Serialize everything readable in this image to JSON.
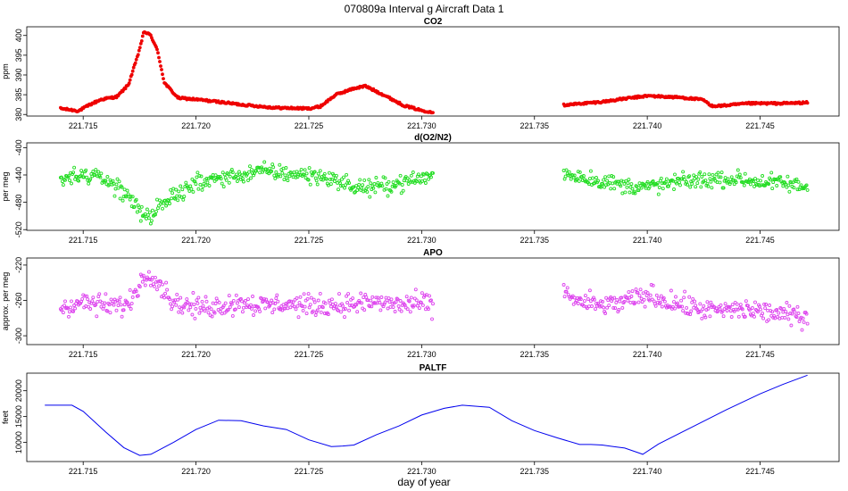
{
  "figure": {
    "title": "070809a   Interval g Aircraft Data 1",
    "xlabel": "day of year"
  },
  "chart_data": [
    {
      "type": "scatter",
      "title": "CO2",
      "ylabel": "ppm",
      "color": "#ee0000",
      "xlim": [
        221.7125,
        221.7485
      ],
      "ylim": [
        379.6,
        402.2
      ],
      "xticks": [
        221.715,
        221.72,
        221.725,
        221.73,
        221.735,
        221.74,
        221.745
      ],
      "xtick_labels": [
        "221.715",
        "221.720",
        "221.725",
        "221.730",
        "221.735",
        "221.740",
        "221.745"
      ],
      "yticks": [
        380,
        385,
        390,
        395,
        400
      ],
      "ytick_labels": [
        "380",
        "385",
        "390",
        "395",
        "400"
      ],
      "x": [
        221.714,
        221.7148,
        221.7153,
        221.7158,
        221.7165,
        221.717,
        221.7174,
        221.7177,
        221.718,
        221.7183,
        221.7186,
        221.7192,
        221.72,
        221.721,
        221.722,
        221.7235,
        221.725,
        221.7255,
        221.7262,
        221.727,
        221.7275,
        221.7283,
        221.7292,
        221.73,
        221.7305,
        221.7363,
        221.738,
        221.739,
        221.74,
        221.7415,
        221.7425,
        221.7428,
        221.7433,
        221.7445,
        221.746,
        221.7471
      ],
      "y": [
        381.5,
        380.9,
        382.5,
        383.8,
        384.5,
        387.5,
        394.5,
        401.0,
        400.0,
        396.0,
        388.0,
        384.2,
        383.8,
        383.2,
        382.5,
        381.7,
        381.5,
        382.0,
        385.0,
        386.6,
        387.2,
        385.0,
        382.3,
        381.0,
        380.6,
        382.4,
        383.2,
        384.0,
        384.7,
        384.3,
        383.7,
        382.2,
        382.2,
        382.8,
        382.8,
        383.0
      ]
    },
    {
      "type": "scatter",
      "title": "d(O2/N2)",
      "ylabel": "per meg",
      "color": "#22dd22",
      "xlim": [
        221.7125,
        221.7485
      ],
      "ylim": [
        -521,
        -393
      ],
      "xticks": [
        221.715,
        221.72,
        221.725,
        221.73,
        221.735,
        221.74,
        221.745
      ],
      "xtick_labels": [
        "221.715",
        "221.720",
        "221.725",
        "221.730",
        "221.735",
        "221.740",
        "221.745"
      ],
      "yticks": [
        -520,
        -480,
        -440,
        -400
      ],
      "ytick_labels": [
        "-520",
        "-480",
        "-440",
        "-400"
      ],
      "x": [
        221.714,
        221.715,
        221.716,
        221.717,
        221.7175,
        221.718,
        221.719,
        221.72,
        221.721,
        221.722,
        221.723,
        221.724,
        221.725,
        221.726,
        221.727,
        221.728,
        221.729,
        221.73,
        221.7305,
        221.7363,
        221.737,
        221.738,
        221.739,
        221.74,
        221.741,
        221.742,
        221.743,
        221.744,
        221.745,
        221.746,
        221.7471
      ],
      "y": [
        -448,
        -440,
        -446,
        -470,
        -492,
        -500,
        -470,
        -452,
        -445,
        -440,
        -434,
        -438,
        -440,
        -445,
        -458,
        -458,
        -452,
        -445,
        -440,
        -438,
        -442,
        -450,
        -455,
        -458,
        -452,
        -448,
        -446,
        -446,
        -450,
        -452,
        -458
      ]
    },
    {
      "type": "scatter",
      "title": "APO",
      "ylabel": "approx. per meg",
      "color": "#dd44ee",
      "xlim": [
        221.7125,
        221.7485
      ],
      "ylim": [
        -310,
        -212
      ],
      "xticks": [
        221.715,
        221.72,
        221.725,
        221.73,
        221.735,
        221.74,
        221.745
      ],
      "xtick_labels": [
        "221.715",
        "221.720",
        "221.725",
        "221.730",
        "221.735",
        "221.740",
        "221.745"
      ],
      "yticks": [
        -300,
        -260,
        -220
      ],
      "ytick_labels": [
        "-300",
        "-260",
        "-220"
      ],
      "x": [
        221.714,
        221.715,
        221.716,
        221.717,
        221.7175,
        221.718,
        221.719,
        221.72,
        221.721,
        221.722,
        221.723,
        221.724,
        221.725,
        221.726,
        221.727,
        221.728,
        221.729,
        221.73,
        221.7305,
        221.7363,
        221.737,
        221.738,
        221.739,
        221.74,
        221.741,
        221.742,
        221.743,
        221.744,
        221.745,
        221.746,
        221.7471
      ],
      "y": [
        -268,
        -262,
        -266,
        -265,
        -240,
        -228,
        -262,
        -268,
        -266,
        -262,
        -266,
        -264,
        -266,
        -265,
        -264,
        -262,
        -265,
        -264,
        -265,
        -250,
        -262,
        -266,
        -262,
        -254,
        -262,
        -268,
        -272,
        -270,
        -272,
        -276,
        -278
      ]
    },
    {
      "type": "line",
      "title": "PALTF",
      "ylabel": "feet",
      "color": "#0000ee",
      "xlim": [
        221.7125,
        221.7485
      ],
      "ylim": [
        6300,
        23400
      ],
      "xticks": [
        221.715,
        221.72,
        221.725,
        221.73,
        221.735,
        221.74,
        221.745
      ],
      "xtick_labels": [
        "221.715",
        "221.720",
        "221.725",
        "221.730",
        "221.735",
        "221.740",
        "221.745"
      ],
      "yticks": [
        10000,
        15000,
        20000
      ],
      "ytick_labels": [
        "10000",
        "15000",
        "20000"
      ],
      "x": [
        221.7133,
        221.7145,
        221.715,
        221.716,
        221.7168,
        221.7175,
        221.718,
        221.719,
        221.72,
        221.721,
        221.722,
        221.723,
        221.724,
        221.725,
        221.726,
        221.7265,
        221.727,
        221.728,
        221.729,
        221.73,
        221.731,
        221.7318,
        221.733,
        221.734,
        221.735,
        221.736,
        221.737,
        221.7375,
        221.738,
        221.7385,
        221.739,
        221.7398,
        221.7405,
        221.742,
        221.7435,
        221.745,
        221.746,
        221.7471
      ],
      "y": [
        17200,
        17200,
        16000,
        12000,
        9000,
        7500,
        7700,
        10000,
        12500,
        14300,
        14200,
        13200,
        12500,
        10500,
        9200,
        9300,
        9500,
        11500,
        13200,
        15300,
        16600,
        17200,
        16800,
        14200,
        12300,
        10900,
        9600,
        9600,
        9500,
        9200,
        8900,
        7700,
        9700,
        13000,
        16300,
        19400,
        21200,
        23000
      ]
    }
  ]
}
